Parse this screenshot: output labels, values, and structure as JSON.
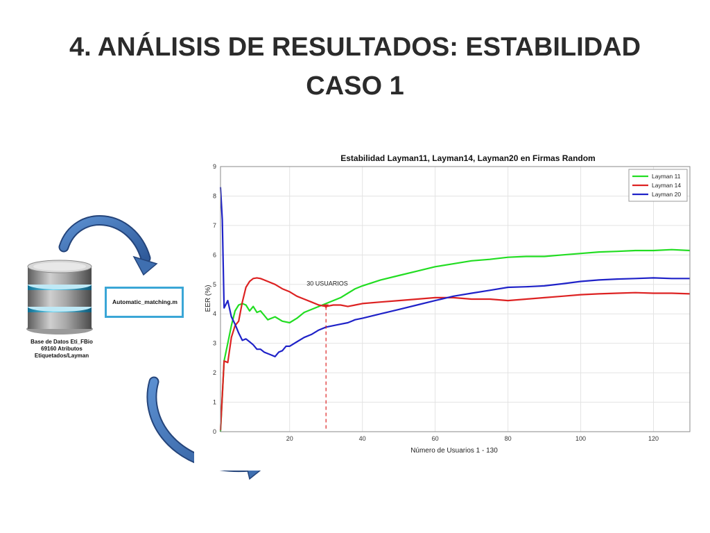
{
  "slide": {
    "title_line1": "4. ANÁLISIS DE RESULTADOS: ESTABILIDAD",
    "title_line2": "CASO 1"
  },
  "diagram": {
    "db_caption_line1": "Base de Datos Eti_FBio",
    "db_caption_line2": "69160 Atributos",
    "db_caption_line3": "Etiquetados/Layman",
    "script_label": "Automatic_matching.m",
    "arrow_color": "#3f6fb0",
    "box_border_color": "#3aa6d6"
  },
  "chart_data": {
    "type": "line",
    "title": "Estabilidad Layman11, Layman14, Layman20 en Firmas Random",
    "xlabel": "Número de Usuarios 1 - 130",
    "ylabel": "EER (%)",
    "xlim": [
      1,
      130
    ],
    "ylim": [
      0,
      9
    ],
    "xticks": [
      20,
      40,
      60,
      80,
      100,
      120
    ],
    "yticks": [
      0,
      1,
      2,
      3,
      4,
      5,
      6,
      7,
      8,
      9
    ],
    "grid": true,
    "legend_position": "top-right",
    "annotation": {
      "text": "30 USUARIOS",
      "x": 30,
      "y": 4.25
    },
    "series": [
      {
        "name": "Layman 11",
        "color": "#22dd22",
        "x": [
          1,
          2,
          3,
          4,
          5,
          6,
          7,
          8,
          9,
          10,
          11,
          12,
          13,
          14,
          16,
          18,
          20,
          22,
          24,
          26,
          28,
          30,
          32,
          34,
          36,
          38,
          40,
          45,
          50,
          55,
          60,
          65,
          70,
          75,
          80,
          85,
          90,
          95,
          100,
          105,
          110,
          115,
          120,
          125,
          130
        ],
        "y": [
          0.0,
          2.4,
          3.0,
          3.6,
          4.1,
          4.3,
          4.35,
          4.3,
          4.1,
          4.25,
          4.05,
          4.1,
          3.95,
          3.8,
          3.9,
          3.75,
          3.7,
          3.85,
          4.05,
          4.15,
          4.25,
          4.35,
          4.45,
          4.55,
          4.7,
          4.85,
          4.95,
          5.15,
          5.3,
          5.45,
          5.6,
          5.7,
          5.8,
          5.85,
          5.92,
          5.95,
          5.95,
          6.0,
          6.05,
          6.1,
          6.12,
          6.15,
          6.15,
          6.18,
          6.15
        ]
      },
      {
        "name": "Layman 14",
        "color": "#dd2222",
        "x": [
          1,
          2,
          3,
          4,
          5,
          6,
          7,
          8,
          9,
          10,
          11,
          12,
          13,
          14,
          16,
          18,
          20,
          22,
          24,
          26,
          28,
          30,
          32,
          34,
          36,
          38,
          40,
          45,
          50,
          55,
          60,
          65,
          70,
          75,
          80,
          85,
          90,
          95,
          100,
          105,
          110,
          115,
          120,
          125,
          130
        ],
        "y": [
          0.05,
          2.4,
          2.35,
          3.2,
          3.6,
          3.75,
          4.4,
          4.9,
          5.1,
          5.2,
          5.22,
          5.2,
          5.15,
          5.1,
          5.0,
          4.85,
          4.75,
          4.6,
          4.5,
          4.4,
          4.3,
          4.25,
          4.3,
          4.3,
          4.25,
          4.3,
          4.35,
          4.4,
          4.45,
          4.5,
          4.55,
          4.55,
          4.5,
          4.5,
          4.45,
          4.5,
          4.55,
          4.6,
          4.65,
          4.68,
          4.7,
          4.72,
          4.7,
          4.7,
          4.68
        ]
      },
      {
        "name": "Layman 20",
        "color": "#1f22c8",
        "x": [
          1,
          1.5,
          2,
          3,
          4,
          5,
          6,
          7,
          8,
          9,
          10,
          11,
          12,
          13,
          14,
          15,
          16,
          17,
          18,
          19,
          20,
          22,
          24,
          26,
          28,
          30,
          32,
          34,
          36,
          38,
          40,
          45,
          50,
          55,
          60,
          65,
          70,
          75,
          80,
          85,
          90,
          95,
          100,
          105,
          110,
          115,
          120,
          125,
          130
        ],
        "y": [
          8.3,
          7.2,
          4.2,
          4.45,
          3.9,
          3.65,
          3.35,
          3.1,
          3.15,
          3.05,
          2.95,
          2.8,
          2.8,
          2.7,
          2.65,
          2.6,
          2.55,
          2.7,
          2.75,
          2.9,
          2.9,
          3.05,
          3.2,
          3.3,
          3.45,
          3.55,
          3.6,
          3.65,
          3.7,
          3.8,
          3.85,
          4.0,
          4.15,
          4.3,
          4.45,
          4.6,
          4.7,
          4.8,
          4.9,
          4.92,
          4.95,
          5.02,
          5.1,
          5.15,
          5.18,
          5.2,
          5.22,
          5.2,
          5.2
        ]
      }
    ]
  }
}
